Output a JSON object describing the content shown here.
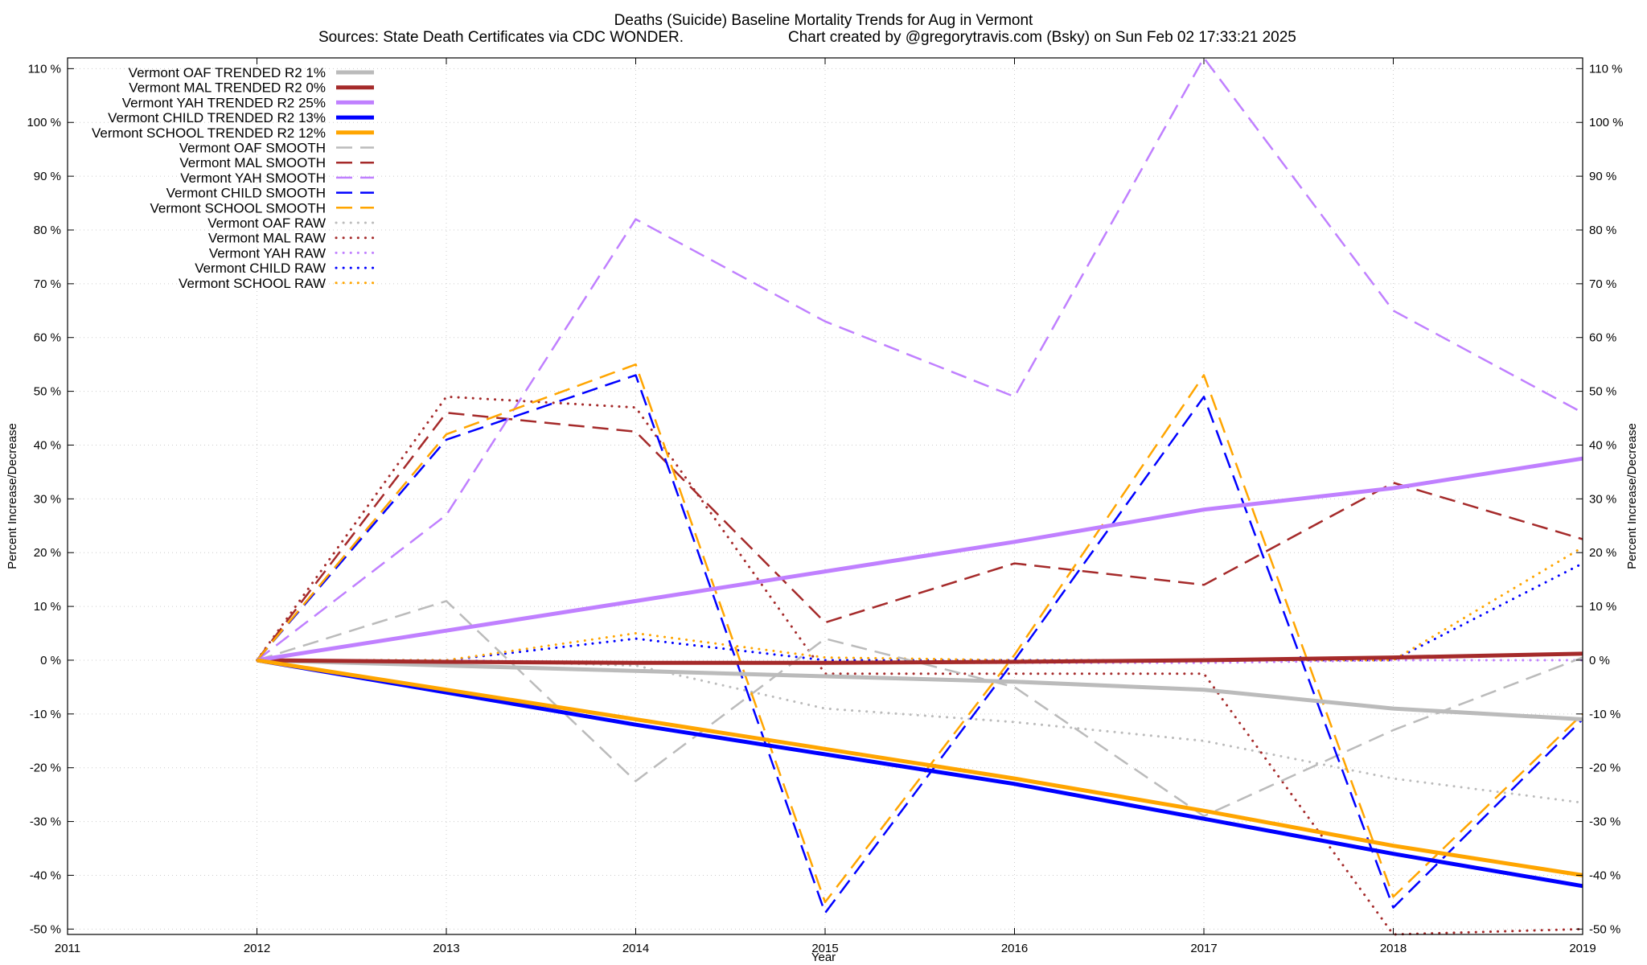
{
  "chart_data": {
    "type": "line",
    "title": "Deaths (Suicide)  Baseline Mortality Trends for Aug in Vermont",
    "subtitle_left": "Sources: State Death Certificates via CDC WONDER.",
    "subtitle_right": "Chart created by @gregorytravis.com (Bsky) on Sun Feb 02 17:33:21 2025",
    "xlabel": "Year",
    "ylabel_left": "Percent Increase/Decrease",
    "ylabel_right": "Percent Increase/Decrease",
    "xlim": [
      2011,
      2019
    ],
    "ylim": [
      -51,
      112
    ],
    "x_ticks": [
      "2011",
      "2012",
      "2013",
      "2014",
      "2015",
      "2016",
      "2017",
      "2018",
      "2019"
    ],
    "y_ticks": [
      {
        "value": 110,
        "label": "110 %"
      },
      {
        "value": 100,
        "label": "100 %"
      },
      {
        "value": 90,
        "label": "90 %"
      },
      {
        "value": 80,
        "label": "80 %"
      },
      {
        "value": 70,
        "label": "70 %"
      },
      {
        "value": 60,
        "label": "60 %"
      },
      {
        "value": 50,
        "label": "50 %"
      },
      {
        "value": 40,
        "label": "40 %"
      },
      {
        "value": 30,
        "label": "30 %"
      },
      {
        "value": 20,
        "label": "20 %"
      },
      {
        "value": 10,
        "label": "10 %"
      },
      {
        "value": 0,
        "label": "0 %"
      },
      {
        "value": -10,
        "label": "-10 %"
      },
      {
        "value": -20,
        "label": "-20 %"
      },
      {
        "value": -30,
        "label": "-30 %"
      },
      {
        "value": -40,
        "label": "-40 %"
      },
      {
        "value": -50,
        "label": "-50 %"
      }
    ],
    "grid": true,
    "legend_position": "top-left",
    "x": [
      2012,
      2013,
      2014,
      2015,
      2016,
      2017,
      2018,
      2019
    ],
    "series": [
      {
        "name": "Vermont OAF TRENDED R2   1%",
        "color": "#bbbbbb",
        "style": "solid",
        "values": [
          0,
          -1,
          -2,
          -3,
          -4,
          -5.5,
          -9,
          -11
        ]
      },
      {
        "name": "Vermont MAL TRENDED R2   0%",
        "color": "#a52a2a",
        "style": "solid",
        "values": [
          0,
          -0.3,
          -0.5,
          -0.5,
          -0.3,
          0,
          0.5,
          1.2
        ]
      },
      {
        "name": "Vermont YAH TRENDED R2  25%",
        "color": "#c080ff",
        "style": "solid",
        "values": [
          0,
          5.5,
          11,
          16.5,
          22,
          28,
          32,
          37.5
        ]
      },
      {
        "name": "Vermont CHILD TRENDED R2  13%",
        "color": "#0000ff",
        "style": "solid",
        "values": [
          0,
          -6,
          -12,
          -17.5,
          -23,
          -29.5,
          -36,
          -42
        ]
      },
      {
        "name": "Vermont SCHOOL TRENDED R2  12%",
        "color": "#ffa500",
        "style": "solid",
        "values": [
          0,
          -5.5,
          -11,
          -16.5,
          -22,
          -28,
          -34.5,
          -40
        ]
      },
      {
        "name": "Vermont OAF SMOOTH",
        "color": "#bbbbbb",
        "style": "dashed",
        "values": [
          0,
          11,
          -22.5,
          4,
          -5,
          -29,
          -13,
          0.5
        ]
      },
      {
        "name": "Vermont MAL SMOOTH",
        "color": "#a52a2a",
        "style": "dashed",
        "values": [
          0,
          46,
          42.5,
          7,
          18,
          14,
          33,
          22.5
        ]
      },
      {
        "name": "Vermont YAH SMOOTH",
        "color": "#c080ff",
        "style": "dashed",
        "values": [
          0,
          27,
          82,
          63,
          49,
          114,
          65,
          46
        ]
      },
      {
        "name": "Vermont CHILD SMOOTH",
        "color": "#0000ff",
        "style": "dashed",
        "values": [
          0,
          41,
          53,
          -47,
          0,
          49,
          -46,
          -11
        ]
      },
      {
        "name": "Vermont SCHOOL SMOOTH",
        "color": "#ffa500",
        "style": "dashed",
        "values": [
          0,
          42,
          55,
          -45,
          1,
          53,
          -44,
          -10
        ]
      },
      {
        "name": "Vermont OAF RAW",
        "color": "#bbbbbb",
        "style": "dotted",
        "values": [
          0,
          0,
          -1,
          -9,
          -11.5,
          -15,
          -22,
          -26.5
        ]
      },
      {
        "name": "Vermont MAL RAW",
        "color": "#a52a2a",
        "style": "dotted",
        "values": [
          0,
          49,
          47,
          -2.5,
          -2.5,
          -2.5,
          -51,
          -50
        ]
      },
      {
        "name": "Vermont YAH RAW",
        "color": "#c080ff",
        "style": "dotted",
        "values": [
          0,
          0,
          -0.5,
          -0.5,
          -0.5,
          -0.5,
          0,
          0
        ]
      },
      {
        "name": "Vermont CHILD RAW",
        "color": "#0000ff",
        "style": "dotted",
        "values": [
          0,
          0,
          4,
          0,
          0,
          0,
          0,
          18
        ]
      },
      {
        "name": "Vermont SCHOOL RAW",
        "color": "#ffa500",
        "style": "dotted",
        "values": [
          0,
          0,
          5,
          0.5,
          0,
          0,
          0,
          21
        ]
      }
    ]
  }
}
